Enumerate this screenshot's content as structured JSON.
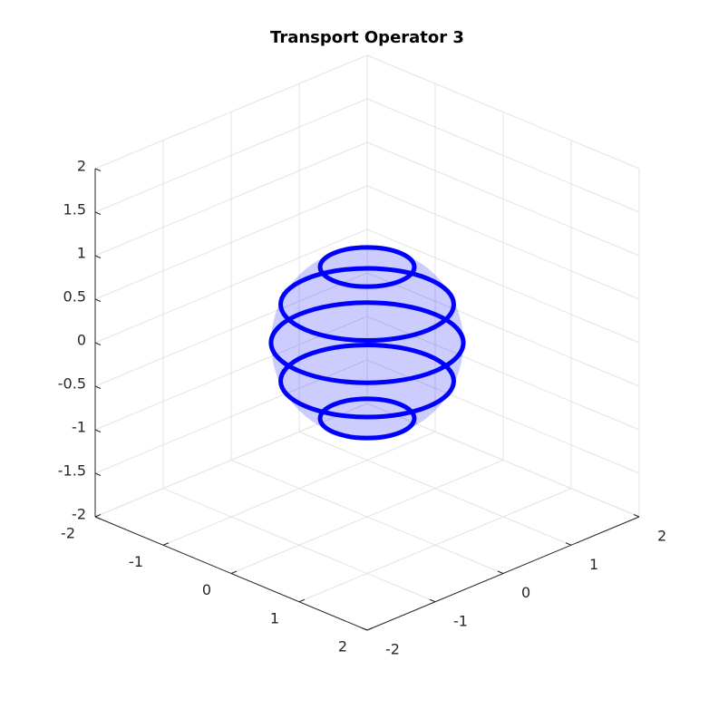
{
  "chart_data": {
    "type": "3d-line",
    "title": "Transport Operator 3",
    "xlim": [
      -2,
      2
    ],
    "ylim": [
      -2,
      2
    ],
    "zlim": [
      -2,
      2
    ],
    "xticks": [
      -2,
      -1,
      0,
      1,
      2
    ],
    "yticks": [
      -2,
      -1,
      0,
      1,
      2
    ],
    "zticks": [
      -2,
      -1.5,
      -1,
      -0.5,
      0,
      0.5,
      1,
      1.5,
      2
    ],
    "grid": true,
    "sphere": {
      "radius": 1,
      "color": "#0000ff"
    },
    "series": [
      {
        "color": "#0000ff",
        "z": 0.87,
        "radius": 0.49
      },
      {
        "color": "#0000ff",
        "z": 0.44,
        "radius": 0.9
      },
      {
        "color": "#0000ff",
        "z": 0,
        "radius": 1
      },
      {
        "color": "#0000ff",
        "z": -0.44,
        "radius": 0.9
      },
      {
        "color": "#0000ff",
        "z": -0.87,
        "radius": 0.49
      }
    ]
  }
}
